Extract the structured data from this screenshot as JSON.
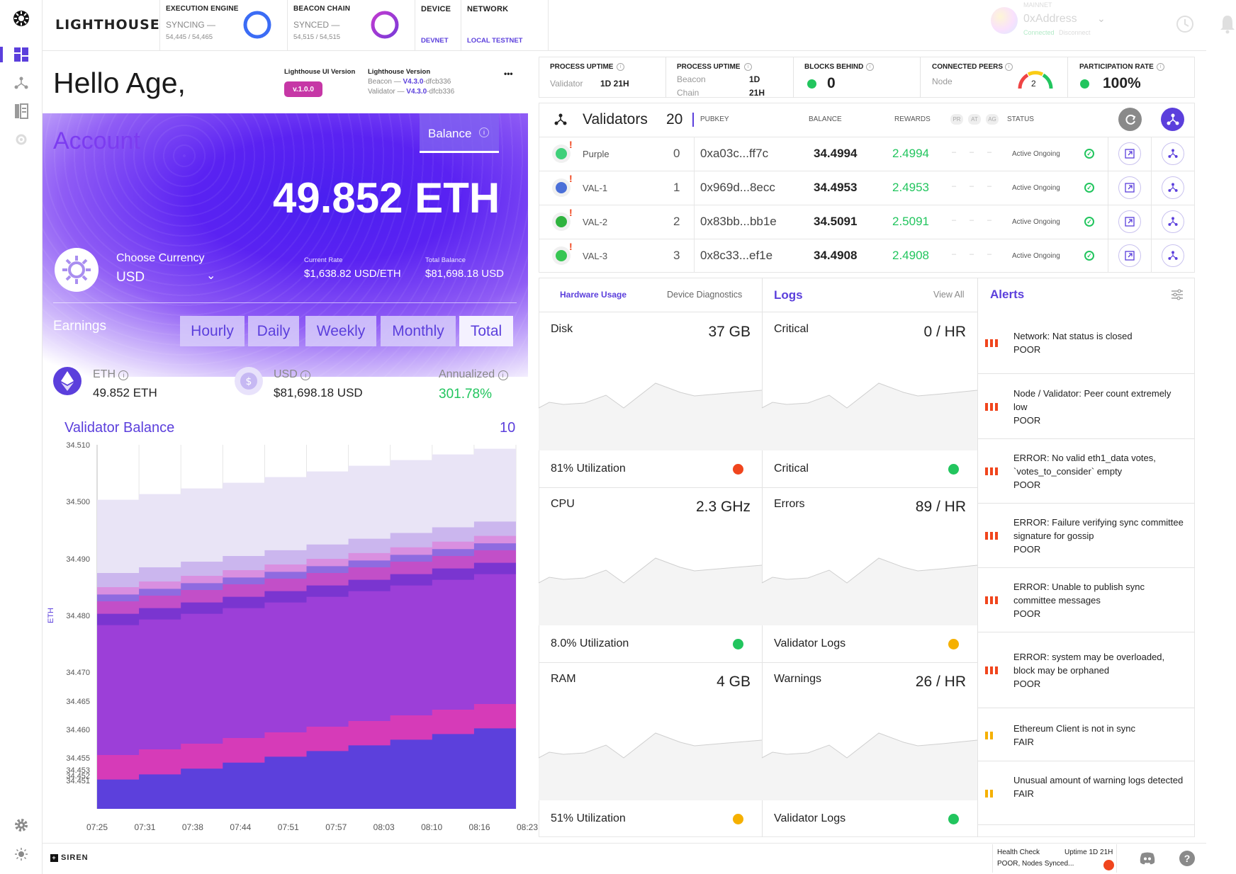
{
  "brand": {
    "name": "LIGHTHOUSE",
    "footer": "SIREN"
  },
  "topbar": {
    "execution": {
      "label": "EXECUTION ENGINE",
      "status": "SYNCING —",
      "progress": "54,445 / 54,465",
      "color": "#3b6cf5"
    },
    "beacon": {
      "label": "BEACON CHAIN",
      "status": "SYNCED —",
      "progress": "54,515 / 54,515",
      "color": "#a13fd0"
    },
    "device": {
      "label": "DEVICE",
      "value": "DEVNET"
    },
    "network": {
      "label": "NETWORK",
      "value": "LOCAL TESTNET"
    },
    "account": {
      "network": "MAINNET",
      "address": "0xAddress",
      "connected": "Connected",
      "disconnect": "Disconnect"
    }
  },
  "hello": {
    "greeting": "Hello Age,",
    "ui_version_label": "Lighthouse UI Version",
    "ui_version": "v.1.0.0",
    "lh_version_label": "Lighthouse Version",
    "beacon_prefix": "Beacon —",
    "beacon_version": "V4.3.0",
    "beacon_hash": "-dfcb336",
    "validator_prefix": "Validator —",
    "validator_version": "V4.3.0",
    "validator_hash": "-dfcb336",
    "menu": "•••"
  },
  "account": {
    "title": "Account",
    "balance_tab": "Balance",
    "balance": "49.852 ETH",
    "currency_label": "Choose Currency",
    "currency": "USD",
    "current_rate_label": "Current Rate",
    "current_rate": "$1,638.82 USD/ETH",
    "total_balance_label": "Total Balance",
    "total_balance": "$81,698.18 USD",
    "earnings_label": "Earnings",
    "periods": [
      "Hourly",
      "Daily",
      "Weekly",
      "Monthly",
      "Total"
    ],
    "eth_label": "ETH",
    "eth_value": "49.852 ETH",
    "usd_label": "USD",
    "usd_value": "$81,698.18 USD",
    "annualized_label": "Annualized",
    "annualized_value": "301.78%"
  },
  "chart_data": {
    "type": "area",
    "title": "Validator Balance",
    "count": "10",
    "ylabel": "ETH",
    "x": [
      "07:25",
      "07:31",
      "07:38",
      "07:44",
      "07:51",
      "07:57",
      "08:03",
      "08:10",
      "08:16",
      "08:23"
    ],
    "yticks": [
      "34.510",
      "34.500",
      "34.490",
      "34.480",
      "34.470",
      "34.465",
      "34.460",
      "34.455",
      "34.453",
      "34.452",
      "34.451"
    ],
    "series": [
      {
        "color": "#5c40dc",
        "values": [
          34.4512,
          34.4522,
          34.4532,
          34.4542,
          34.4552,
          34.4562,
          34.4572,
          34.4582,
          34.4592,
          34.4602
        ]
      },
      {
        "color": "#d63bb8",
        "values": [
          34.4555,
          34.4565,
          34.4575,
          34.4585,
          34.4595,
          34.4605,
          34.4615,
          34.4625,
          34.4635,
          34.4645
        ]
      },
      {
        "color": "#9c3fd8",
        "values": [
          34.4783,
          34.4793,
          34.4803,
          34.4813,
          34.4823,
          34.4833,
          34.4843,
          34.4853,
          34.4863,
          34.4873
        ]
      },
      {
        "color": "#7a35d0",
        "values": [
          34.4803,
          34.4813,
          34.4823,
          34.4833,
          34.4843,
          34.4853,
          34.4863,
          34.4873,
          34.4883,
          34.4893
        ]
      },
      {
        "color": "#c24fc8",
        "values": [
          34.4825,
          34.4835,
          34.4845,
          34.4855,
          34.4865,
          34.4875,
          34.4885,
          34.4895,
          34.4905,
          34.4915
        ]
      },
      {
        "color": "#8f6be0",
        "values": [
          34.4837,
          34.4847,
          34.4857,
          34.4867,
          34.4877,
          34.4887,
          34.4897,
          34.4907,
          34.4917,
          34.4927
        ]
      },
      {
        "color": "#d98fe0",
        "values": [
          34.485,
          34.486,
          34.487,
          34.488,
          34.489,
          34.49,
          34.491,
          34.492,
          34.493,
          34.494
        ]
      },
      {
        "color": "#cbb6ee",
        "values": [
          34.4875,
          34.4885,
          34.4895,
          34.4905,
          34.4915,
          34.4925,
          34.4935,
          34.4945,
          34.4955,
          34.4965
        ]
      },
      {
        "color": "#e9e4f6",
        "values": [
          34.5003,
          34.5013,
          34.5023,
          34.5033,
          34.5043,
          34.5053,
          34.5063,
          34.5073,
          34.5083,
          34.5093
        ]
      }
    ]
  },
  "stats": [
    {
      "label": "PROCESS UPTIME",
      "sub1": "Validator",
      "val1": "1D 21H",
      "sub2": "",
      "val2": ""
    },
    {
      "label": "PROCESS UPTIME",
      "sub1": "Beacon",
      "val1": "1D",
      "sub2": "Chain",
      "val2": "21H"
    },
    {
      "label": "BLOCKS BEHIND",
      "value": "0"
    },
    {
      "label": "CONNECTED PEERS",
      "sub1": "Node",
      "gauge": "2"
    },
    {
      "label": "PARTICIPATION RATE",
      "value": "100%"
    }
  ],
  "validators": {
    "title": "Validators",
    "count": "20",
    "headers": {
      "pubkey": "PUBKEY",
      "balance": "BALANCE",
      "rewards": "REWARDS",
      "pr": "PR",
      "at": "AT",
      "ag": "AG",
      "status": "STATUS"
    },
    "rows": [
      {
        "name": "Purple",
        "index": "0",
        "pubkey": "0xa03c...ff7c",
        "balance": "34.4994",
        "rewards": "2.4994",
        "status": "Active Ongoing",
        "avatar": "#3fd07a"
      },
      {
        "name": "VAL-1",
        "index": "1",
        "pubkey": "0x969d...8ecc",
        "balance": "34.4953",
        "rewards": "2.4953",
        "status": "Active Ongoing",
        "avatar": "#4a6fd8"
      },
      {
        "name": "VAL-2",
        "index": "2",
        "pubkey": "0x83bb...bb1e",
        "balance": "34.5091",
        "rewards": "2.5091",
        "status": "Active Ongoing",
        "avatar": "#2fb33f"
      },
      {
        "name": "VAL-3",
        "index": "3",
        "pubkey": "0x8c33...ef1e",
        "balance": "34.4908",
        "rewards": "2.4908",
        "status": "Active Ongoing",
        "avatar": "#37c653"
      }
    ]
  },
  "hardware": {
    "tabs": [
      "Hardware Usage",
      "Device Diagnostics"
    ],
    "items": [
      {
        "title": "Disk",
        "value": "37 GB",
        "foot": "81% Utilization",
        "dot": "#f0451d"
      },
      {
        "title": "CPU",
        "value": "2.3 GHz",
        "foot": "8.0% Utilization",
        "dot": "#22c55e"
      },
      {
        "title": "RAM",
        "value": "4 GB",
        "foot": "51% Utilization",
        "dot": "#f5b000"
      }
    ]
  },
  "logs": {
    "title": "Logs",
    "view_all": "View All",
    "items": [
      {
        "title": "Critical",
        "value": "0 / HR",
        "foot": "Critical",
        "dot": "#22c55e"
      },
      {
        "title": "Errors",
        "value": "89 / HR",
        "foot": "Validator Logs",
        "dot": "#f5b000"
      },
      {
        "title": "Warnings",
        "value": "26 / HR",
        "foot": "Validator Logs",
        "dot": "#22c55e"
      }
    ]
  },
  "alerts": {
    "title": "Alerts",
    "items": [
      {
        "text": "Network: Nat status is closed",
        "level": "POOR",
        "color": "#f0451d",
        "bars": 3
      },
      {
        "text": "Node / Validator: Peer count extremely low",
        "level": "POOR",
        "color": "#f0451d",
        "bars": 3
      },
      {
        "text": "ERROR: No valid eth1_data votes, `votes_to_consider` empty",
        "level": "POOR",
        "color": "#f0451d",
        "bars": 3
      },
      {
        "text": "ERROR: Failure verifying sync committee signature for gossip",
        "level": "POOR",
        "color": "#f0451d",
        "bars": 3
      },
      {
        "text": "ERROR: Unable to publish sync committee messages",
        "level": "POOR",
        "color": "#f0451d",
        "bars": 3
      },
      {
        "text": "ERROR: system may be overloaded, block may be orphaned",
        "level": "POOR",
        "color": "#f0451d",
        "bars": 3
      },
      {
        "text": "Ethereum Client is not in sync",
        "level": "FAIR",
        "color": "#f5b000",
        "bars": 2
      },
      {
        "text": "Unusual amount of warning logs detected",
        "level": "FAIR",
        "color": "#f5b000",
        "bars": 2
      }
    ]
  },
  "footer": {
    "health_label": "Health Check",
    "health_status": "POOR, Nodes Synced...",
    "uptime": "Uptime 1D 21H",
    "help": "?"
  },
  "colors": {
    "accent": "#5b3fdc",
    "green": "#22c55e",
    "pink": "#c637a6"
  }
}
